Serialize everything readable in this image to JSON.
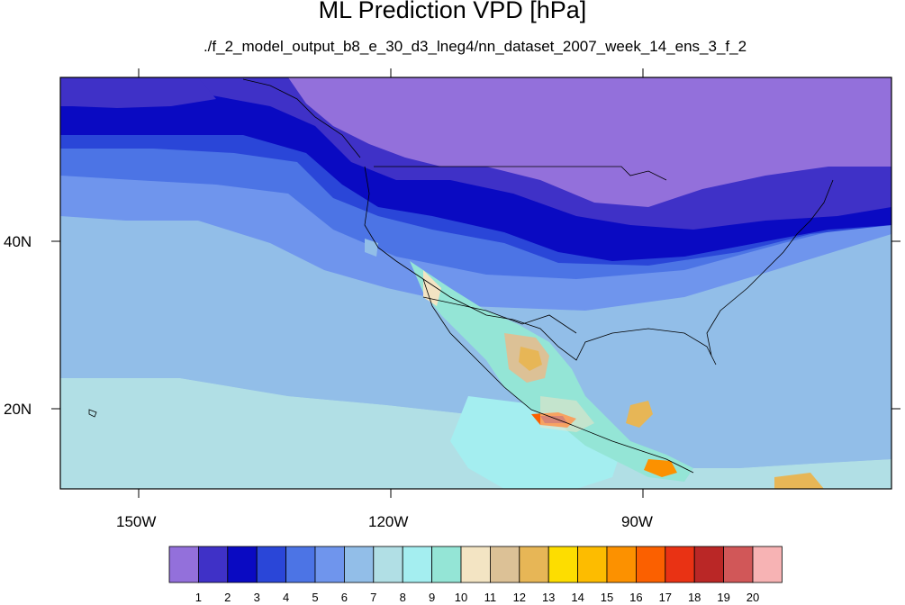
{
  "title": "ML Prediction VPD [hPa]",
  "subtitle": "./f_2_model_output_b8_e_30_d3_lneg4/nn_dataset_2007_week_14_ens_3_f_2",
  "axes": {
    "lon_labels": [
      "150W",
      "120W",
      "90W"
    ],
    "lat_labels": [
      "40N",
      "20N"
    ]
  },
  "colorbar": {
    "labels": [
      "1",
      "2",
      "3",
      "4",
      "5",
      "6",
      "7",
      "8",
      "9",
      "10",
      "11",
      "12",
      "13",
      "14",
      "15",
      "16",
      "17",
      "18",
      "19",
      "20"
    ],
    "colors": [
      "#9370db",
      "#3f31c7",
      "#0a0ac2",
      "#2a46d8",
      "#4c74e5",
      "#6f95ed",
      "#92bee8",
      "#b1dfe5",
      "#a4eef0",
      "#94e5d6",
      "#f3e4c3",
      "#dcc196",
      "#e7b656",
      "#fddd00",
      "#fdbc00",
      "#fc9100",
      "#fb6000",
      "#e93214",
      "#ba2726",
      "#d15758",
      "#f7b3b4"
    ]
  }
}
